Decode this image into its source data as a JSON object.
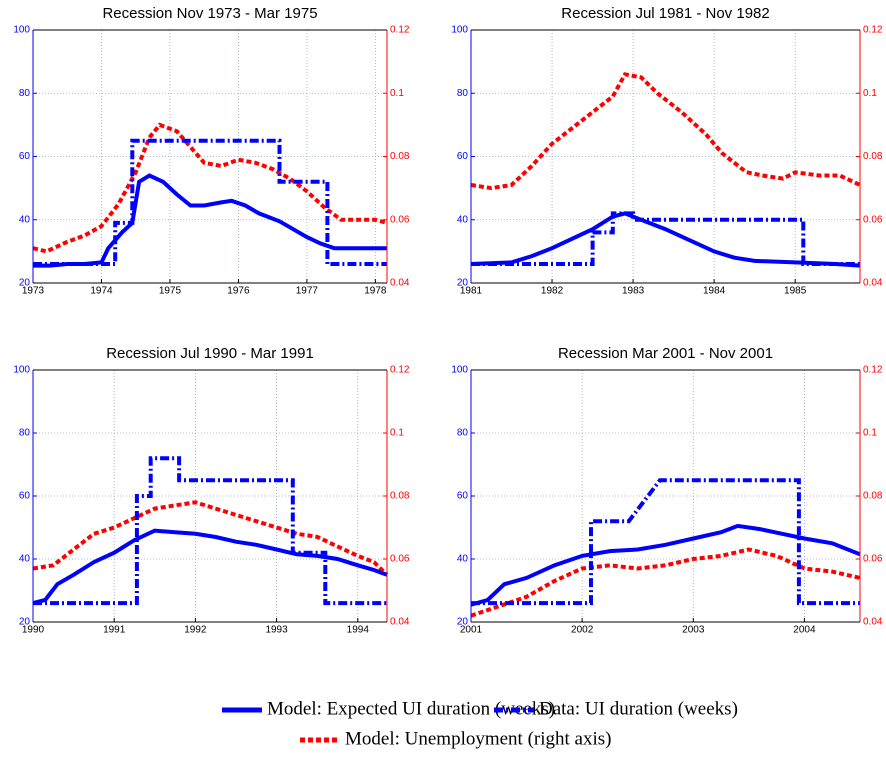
{
  "chart_data": [
    {
      "type": "line",
      "title": "Recession Nov 1973 - Mar 1975",
      "xlim": [
        1973,
        1978.17
      ],
      "xticks": [
        1973,
        1974,
        1975,
        1976,
        1977,
        1978
      ],
      "ylim": [
        20,
        100
      ],
      "yticks": [
        20,
        40,
        60,
        80,
        100
      ],
      "y2lim": [
        0.04,
        0.12
      ],
      "y2ticks": [
        0.04,
        0.06,
        0.08,
        0.1,
        0.12
      ],
      "grid": true,
      "series": [
        {
          "name": "Model: Expected UI duration (weeks)",
          "color": "#0000ff",
          "style": "solid",
          "x": [
            1973,
            1973.25,
            1973.5,
            1973.75,
            1974,
            1974.1,
            1974.3,
            1974.45,
            1974.55,
            1974.7,
            1974.9,
            1975.1,
            1975.3,
            1975.5,
            1975.75,
            1975.9,
            1976.1,
            1976.3,
            1976.6,
            1976.8,
            1977,
            1977.2,
            1977.4,
            1977.7,
            1978,
            1978.17
          ],
          "values": [
            25.5,
            25.5,
            26,
            26,
            26.5,
            31,
            36,
            39,
            52,
            54,
            52,
            48,
            44.5,
            44.5,
            45.5,
            46,
            44.5,
            42,
            39.5,
            37,
            34.5,
            32.5,
            31,
            31,
            31,
            31
          ]
        },
        {
          "name": "Data: UI duration (weeks)",
          "color": "#0000ff",
          "style": "dashdot",
          "x": [
            1973,
            1974.2,
            1974.2,
            1974.45,
            1974.45,
            1976.6,
            1976.6,
            1977.3,
            1977.3,
            1978.17
          ],
          "values": [
            26,
            26,
            39,
            39,
            65,
            65,
            52,
            52,
            26,
            26
          ]
        },
        {
          "name": "Model: Unemployment (right axis)",
          "color": "#ff0000",
          "style": "dashed",
          "axis": "y2",
          "x": [
            1973,
            1973.2,
            1973.5,
            1973.75,
            1974,
            1974.25,
            1974.5,
            1974.7,
            1974.85,
            1975.1,
            1975.3,
            1975.5,
            1975.75,
            1976,
            1976.25,
            1976.5,
            1976.75,
            1977,
            1977.25,
            1977.5,
            1977.75,
            1978,
            1978.17
          ],
          "values": [
            0.051,
            0.05,
            0.053,
            0.055,
            0.058,
            0.065,
            0.075,
            0.086,
            0.09,
            0.088,
            0.083,
            0.078,
            0.077,
            0.079,
            0.078,
            0.076,
            0.073,
            0.069,
            0.064,
            0.06,
            0.06,
            0.06,
            0.059
          ]
        }
      ]
    },
    {
      "type": "line",
      "title": "Recession Jul 1981 - Nov 1982",
      "xlim": [
        1981,
        1985.8
      ],
      "xticks": [
        1981,
        1982,
        1983,
        1984,
        1985
      ],
      "ylim": [
        20,
        100
      ],
      "yticks": [
        20,
        40,
        60,
        80,
        100
      ],
      "y2lim": [
        0.04,
        0.12
      ],
      "y2ticks": [
        0.04,
        0.06,
        0.08,
        0.1,
        0.12
      ],
      "grid": true,
      "series": [
        {
          "color": "#0000ff",
          "style": "solid",
          "x": [
            1981,
            1981.5,
            1981.75,
            1982,
            1982.25,
            1982.5,
            1982.75,
            1982.9,
            1983.1,
            1983.4,
            1983.7,
            1984,
            1984.25,
            1984.5,
            1985,
            1985.5,
            1985.8
          ],
          "values": [
            26,
            26.5,
            28.5,
            31,
            34,
            37,
            41,
            42,
            40,
            37,
            33.5,
            30,
            28,
            27,
            26.5,
            26,
            25.5
          ]
        },
        {
          "color": "#0000ff",
          "style": "dashdot",
          "x": [
            1981,
            1982.5,
            1982.5,
            1982.75,
            1982.75,
            1983,
            1983,
            1985.1,
            1985.1,
            1985.8
          ],
          "values": [
            26,
            26,
            36,
            36,
            42,
            42,
            40,
            40,
            26,
            26
          ]
        },
        {
          "color": "#ff0000",
          "style": "dashed",
          "axis": "y2",
          "x": [
            1981,
            1981.25,
            1981.5,
            1981.75,
            1982,
            1982.25,
            1982.5,
            1982.75,
            1982.9,
            1983.1,
            1983.3,
            1983.6,
            1983.9,
            1984.1,
            1984.4,
            1984.6,
            1984.85,
            1985,
            1985.3,
            1985.55,
            1985.8
          ],
          "values": [
            0.071,
            0.07,
            0.071,
            0.077,
            0.084,
            0.089,
            0.094,
            0.099,
            0.106,
            0.105,
            0.1,
            0.094,
            0.087,
            0.081,
            0.075,
            0.074,
            0.073,
            0.075,
            0.074,
            0.074,
            0.071
          ]
        }
      ]
    },
    {
      "type": "line",
      "title": "Recession Jul 1990 - Mar 1991",
      "xlim": [
        1990,
        1994.36
      ],
      "xticks": [
        1990,
        1991,
        1992,
        1993,
        1994
      ],
      "ylim": [
        20,
        100
      ],
      "yticks": [
        20,
        40,
        60,
        80,
        100
      ],
      "y2lim": [
        0.04,
        0.12
      ],
      "y2ticks": [
        0.04,
        0.06,
        0.08,
        0.1,
        0.12
      ],
      "grid": true,
      "series": [
        {
          "color": "#0000ff",
          "style": "solid",
          "x": [
            1990,
            1990.15,
            1990.3,
            1990.5,
            1990.75,
            1991,
            1991.25,
            1991.5,
            1991.75,
            1992,
            1992.25,
            1992.5,
            1992.75,
            1993,
            1993.25,
            1993.5,
            1993.75,
            1994,
            1994.2,
            1994.36
          ],
          "values": [
            26,
            27,
            32,
            35,
            39,
            42,
            46,
            49,
            48.5,
            48,
            47,
            45.5,
            44.5,
            43,
            41.5,
            41,
            40,
            38,
            36.5,
            35
          ]
        },
        {
          "color": "#0000ff",
          "style": "dashdot",
          "x": [
            1990,
            1991.28,
            1991.28,
            1991.45,
            1991.45,
            1991.8,
            1991.8,
            1993.2,
            1993.2,
            1993.6,
            1993.6,
            1994.36
          ],
          "values": [
            26,
            26,
            60,
            60,
            72,
            72,
            65,
            65,
            42,
            42,
            26,
            26
          ]
        },
        {
          "color": "#ff0000",
          "style": "dashed",
          "axis": "y2",
          "x": [
            1990,
            1990.25,
            1990.5,
            1990.75,
            1991,
            1991.25,
            1991.5,
            1991.75,
            1992,
            1992.25,
            1992.5,
            1992.75,
            1993,
            1993.25,
            1993.5,
            1993.75,
            1994,
            1994.2,
            1994.36
          ],
          "values": [
            0.057,
            0.058,
            0.063,
            0.068,
            0.07,
            0.073,
            0.076,
            0.077,
            0.078,
            0.076,
            0.074,
            0.072,
            0.07,
            0.068,
            0.067,
            0.064,
            0.061,
            0.059,
            0.055
          ]
        }
      ]
    },
    {
      "type": "line",
      "title": "Recession Mar 2001 - Nov 2001",
      "xlim": [
        2001,
        2004.5
      ],
      "xticks": [
        2001,
        2002,
        2003,
        2004
      ],
      "ylim": [
        20,
        100
      ],
      "yticks": [
        20,
        40,
        60,
        80,
        100
      ],
      "y2lim": [
        0.04,
        0.12
      ],
      "y2ticks": [
        0.04,
        0.06,
        0.08,
        0.1,
        0.12
      ],
      "grid": true,
      "series": [
        {
          "color": "#0000ff",
          "style": "solid",
          "x": [
            2001,
            2001.15,
            2001.3,
            2001.5,
            2001.75,
            2002,
            2002.25,
            2002.5,
            2002.75,
            2003,
            2003.25,
            2003.4,
            2003.6,
            2003.8,
            2004,
            2004.25,
            2004.5
          ],
          "values": [
            25.5,
            27,
            32,
            34,
            38,
            41,
            42.5,
            43,
            44.5,
            46.5,
            48.5,
            50.5,
            49.5,
            48,
            46.5,
            45,
            41.5
          ]
        },
        {
          "color": "#0000ff",
          "style": "dashdot",
          "x": [
            2001,
            2002.08,
            2002.08,
            2002.42,
            2002.7,
            2003.95,
            2003.95,
            2004.5
          ],
          "values": [
            26,
            26,
            52,
            52,
            65,
            65,
            26,
            26
          ]
        },
        {
          "color": "#ff0000",
          "style": "dashed",
          "axis": "y2",
          "x": [
            2001,
            2001.25,
            2001.5,
            2001.75,
            2002,
            2002.25,
            2002.5,
            2002.75,
            2003,
            2003.25,
            2003.5,
            2003.75,
            2004,
            2004.25,
            2004.5
          ],
          "values": [
            0.042,
            0.045,
            0.048,
            0.053,
            0.057,
            0.058,
            0.057,
            0.058,
            0.06,
            0.061,
            0.063,
            0.061,
            0.057,
            0.056,
            0.054
          ]
        }
      ]
    }
  ]
}
